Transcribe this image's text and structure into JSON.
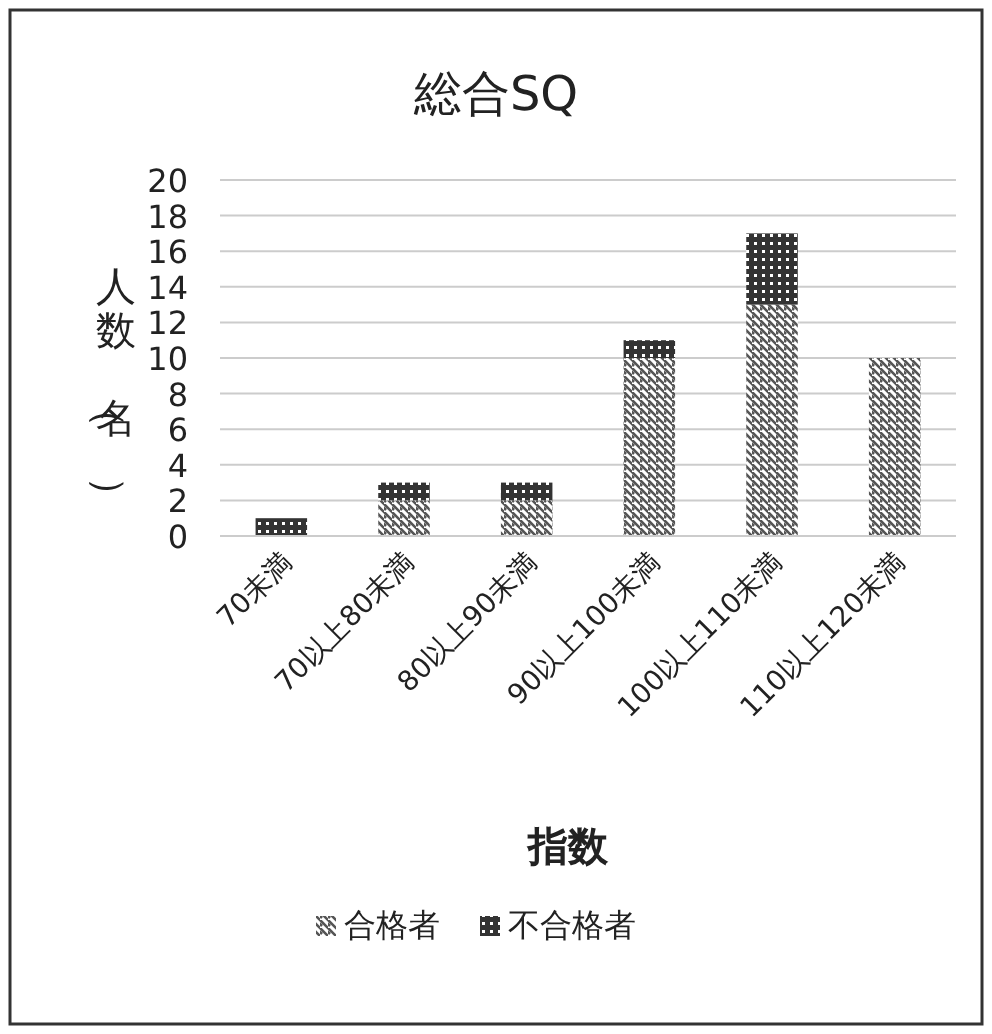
{
  "chart_data": {
    "type": "bar",
    "title": "総合SQ",
    "xlabel": "指数",
    "ylabel": "人数（名）",
    "stacked": true,
    "categories": [
      "70未満",
      "70以上80未満",
      "80以上90未満",
      "90以上100未満",
      "100以上110未満",
      "110以上120未満"
    ],
    "series": [
      {
        "name": "合格者",
        "color": "#555555",
        "values": [
          0,
          2,
          2,
          10,
          13,
          10
        ]
      },
      {
        "name": "不合格者",
        "color": "#333333",
        "values": [
          1,
          1,
          1,
          1,
          4,
          0
        ]
      }
    ],
    "ylim": [
      0,
      20
    ],
    "yticks": [
      0,
      2,
      4,
      6,
      8,
      10,
      12,
      14,
      16,
      18,
      20
    ],
    "grid": "y",
    "legend": "bottom"
  }
}
